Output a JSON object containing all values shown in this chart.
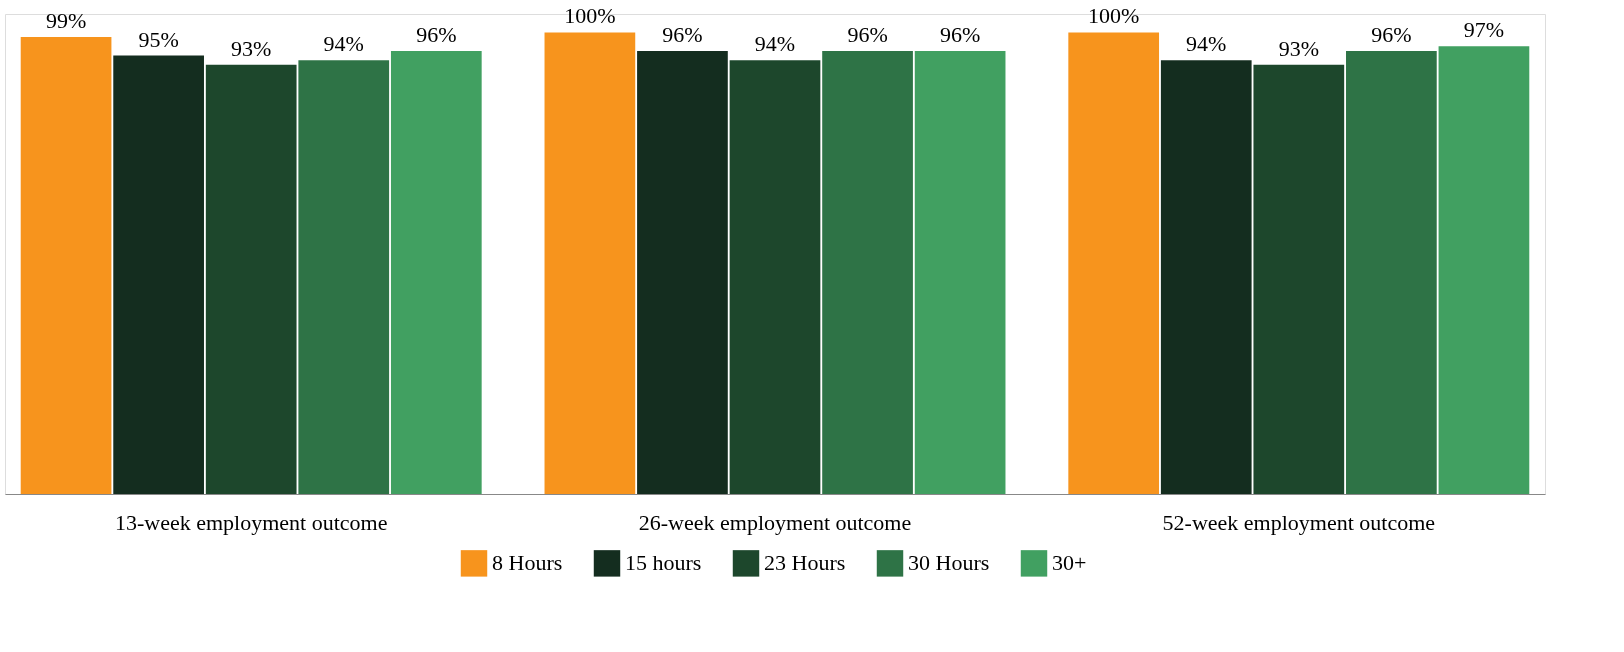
{
  "chart_data": {
    "type": "bar",
    "categories": [
      "13-week employment outcome",
      "26-week employment outcome",
      "52-week employment outcome"
    ],
    "series": [
      {
        "name": "8 Hours",
        "color": "#f7941d",
        "values": [
          99,
          100,
          100
        ],
        "value_labels": [
          "99%",
          "100%",
          "100%"
        ]
      },
      {
        "name": "15 hours",
        "color": "#142d1f",
        "values": [
          95,
          96,
          94
        ],
        "value_labels": [
          "95%",
          "96%",
          "94%"
        ]
      },
      {
        "name": "23 Hours",
        "color": "#1d472c",
        "values": [
          93,
          94,
          93
        ],
        "value_labels": [
          "93%",
          "94%",
          "93%"
        ]
      },
      {
        "name": "30 Hours",
        "color": "#2e7346",
        "values": [
          94,
          96,
          96
        ],
        "value_labels": [
          "94%",
          "96%",
          "96%"
        ]
      },
      {
        "name": "30+",
        "color": "#41a061",
        "values": [
          96,
          96,
          97
        ],
        "value_labels": [
          "96%",
          "96%",
          "97%"
        ]
      }
    ],
    "legend": "bottom",
    "grid": false
  }
}
